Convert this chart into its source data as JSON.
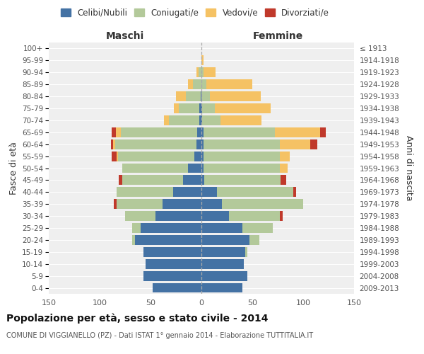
{
  "age_groups": [
    "100+",
    "95-99",
    "90-94",
    "85-89",
    "80-84",
    "75-79",
    "70-74",
    "65-69",
    "60-64",
    "55-59",
    "50-54",
    "45-49",
    "40-44",
    "35-39",
    "30-34",
    "25-29",
    "20-24",
    "15-19",
    "10-14",
    "5-9",
    "0-4"
  ],
  "birth_years": [
    "≤ 1913",
    "1914-1918",
    "1919-1923",
    "1924-1928",
    "1929-1933",
    "1934-1938",
    "1939-1943",
    "1944-1948",
    "1949-1953",
    "1954-1958",
    "1959-1963",
    "1964-1968",
    "1969-1973",
    "1974-1978",
    "1979-1983",
    "1984-1988",
    "1989-1993",
    "1994-1998",
    "1999-2003",
    "2004-2008",
    "2009-2013"
  ],
  "males": {
    "celibi": [
      0,
      0,
      0,
      0,
      1,
      2,
      2,
      4,
      5,
      7,
      13,
      18,
      28,
      38,
      45,
      60,
      65,
      57,
      55,
      57,
      48
    ],
    "coniugati": [
      0,
      0,
      3,
      8,
      14,
      20,
      30,
      75,
      80,
      75,
      65,
      60,
      55,
      45,
      30,
      8,
      3,
      0,
      0,
      0,
      0
    ],
    "vedovi": [
      0,
      0,
      2,
      5,
      10,
      5,
      5,
      5,
      2,
      1,
      0,
      0,
      0,
      0,
      0,
      0,
      0,
      0,
      0,
      0,
      0
    ],
    "divorziati": [
      0,
      0,
      0,
      0,
      0,
      0,
      0,
      4,
      2,
      5,
      0,
      3,
      0,
      3,
      0,
      0,
      0,
      0,
      0,
      0,
      0
    ]
  },
  "females": {
    "nubili": [
      0,
      0,
      0,
      0,
      0,
      1,
      1,
      2,
      2,
      2,
      2,
      3,
      15,
      20,
      27,
      40,
      47,
      43,
      42,
      45,
      40
    ],
    "coniugate": [
      0,
      0,
      2,
      5,
      8,
      12,
      18,
      70,
      75,
      75,
      75,
      75,
      75,
      80,
      50,
      30,
      10,
      2,
      0,
      0,
      0
    ],
    "vedove": [
      0,
      2,
      12,
      45,
      50,
      55,
      40,
      45,
      30,
      10,
      8,
      0,
      0,
      0,
      0,
      0,
      0,
      0,
      0,
      0,
      0
    ],
    "divorziate": [
      0,
      0,
      0,
      0,
      0,
      0,
      0,
      5,
      7,
      0,
      0,
      5,
      3,
      0,
      3,
      0,
      0,
      0,
      0,
      0,
      0
    ]
  },
  "colors": {
    "celibi": "#4472a4",
    "coniugati": "#b3c99a",
    "vedovi": "#f5c264",
    "divorziati": "#c0392b"
  },
  "xlim": 150,
  "title": "Popolazione per età, sesso e stato civile - 2014",
  "subtitle": "COMUNE DI VIGGIANELLO (PZ) - Dati ISTAT 1° gennaio 2014 - Elaborazione TUTTITALIA.IT",
  "ylabel_left": "Fasce di età",
  "ylabel_right": "Anni di nascita",
  "label_maschi": "Maschi",
  "label_femmine": "Femmine",
  "bg_color": "#efefef",
  "legend": [
    "Celibi/Nubili",
    "Coniugati/e",
    "Vedovi/e",
    "Divorziati/e"
  ]
}
